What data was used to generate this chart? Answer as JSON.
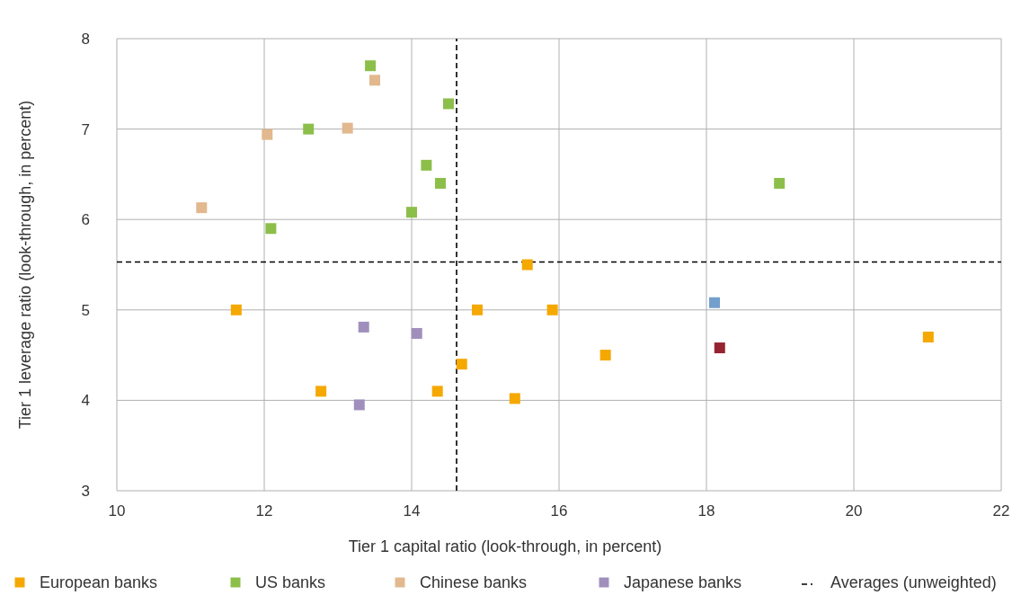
{
  "chart_data": {
    "type": "scatter",
    "xlabel": "Tier 1 capital ratio (look-through, in percent)",
    "ylabel": "Tier 1 leverage ratio (look-through, in percent)",
    "xlim": [
      10,
      22
    ],
    "xticks": [
      10,
      12,
      14,
      16,
      18,
      20,
      22
    ],
    "ylim": [
      3,
      8
    ],
    "yticks": [
      3,
      4,
      5,
      6,
      7,
      8
    ],
    "grid": true,
    "legend": "bottom",
    "marker": "square",
    "series": [
      {
        "name": "European banks",
        "color": "#f5a800",
        "x": [
          11.62,
          12.77,
          14.35,
          14.68,
          14.89,
          15.4,
          15.57,
          15.91,
          16.63,
          21.01
        ],
        "values": [
          5.0,
          4.1,
          4.1,
          4.4,
          5.0,
          4.02,
          5.5,
          5.0,
          4.5,
          4.7
        ]
      },
      {
        "name": "US banks",
        "color": "#8cbf4a",
        "x": [
          13.44,
          14.5,
          12.6,
          14.2,
          14.39,
          14.0,
          12.09,
          18.99
        ],
        "values": [
          7.7,
          7.28,
          7.0,
          6.6,
          6.4,
          6.08,
          5.9,
          6.4
        ]
      },
      {
        "name": "Chinese banks",
        "color": "#e2b88e",
        "x": [
          13.5,
          13.13,
          12.04,
          11.15
        ],
        "values": [
          7.54,
          7.01,
          6.94,
          6.13
        ]
      },
      {
        "name": "Japanese banks",
        "color": "#a08fbc",
        "x": [
          13.35,
          14.07,
          13.29
        ],
        "values": [
          4.81,
          4.74,
          3.95
        ]
      },
      {
        "color": "#729fcb",
        "x": [
          18.11
        ],
        "values": [
          5.08
        ]
      },
      {
        "color": "#952430",
        "x": [
          18.18
        ],
        "values": [
          4.58
        ]
      }
    ],
    "ref_lines": [
      {
        "axis": "x",
        "value": 14.61,
        "label": "Averages (unweighted)",
        "line_style": "dashed",
        "color": "#000000"
      },
      {
        "axis": "y",
        "value": 5.53,
        "line_style": "dashed",
        "color": "#000000"
      }
    ]
  }
}
